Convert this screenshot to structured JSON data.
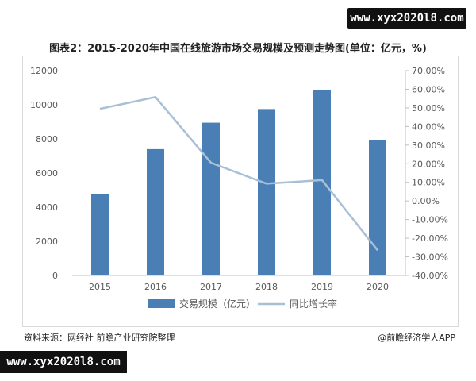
{
  "watermark_top": "www.xyx2020l8.com",
  "watermark_bottom": "www.xyx2020l8.com",
  "title": "图表2：2015-2020年中国在线旅游市场交易规模及预测走势图(单位：亿元，%)",
  "source": "资料来源：网经社 前瞻产业研究院整理",
  "credit": "@前瞻经济学人APP",
  "chart_data": {
    "type": "bar",
    "categories": [
      "2015",
      "2016",
      "2017",
      "2018",
      "2019",
      "2020"
    ],
    "ylim": [
      0,
      12000
    ],
    "y_ticks": [
      "0",
      "2000",
      "4000",
      "6000",
      "8000",
      "10000",
      "12000"
    ],
    "y2lim": [
      -40,
      70
    ],
    "y2_ticks": [
      "-40.00%",
      "-30.00%",
      "-20.00%",
      "-10.00%",
      "0.00%",
      "10.00%",
      "20.00%",
      "30.00%",
      "40.00%",
      "50.00%",
      "60.00%",
      "70.00%"
    ],
    "series": [
      {
        "name": "交易规模（亿元）",
        "type": "bar",
        "axis": "left",
        "color": "#4a7fb5",
        "values": [
          4750,
          7400,
          8950,
          9750,
          10850,
          7950
        ]
      },
      {
        "name": "同比增长率",
        "type": "line",
        "axis": "right",
        "color": "#a9bfd6",
        "values": [
          49.5,
          55.8,
          20.5,
          9.3,
          11.2,
          -26.5
        ]
      }
    ],
    "legend_position": "bottom",
    "grid": false
  }
}
